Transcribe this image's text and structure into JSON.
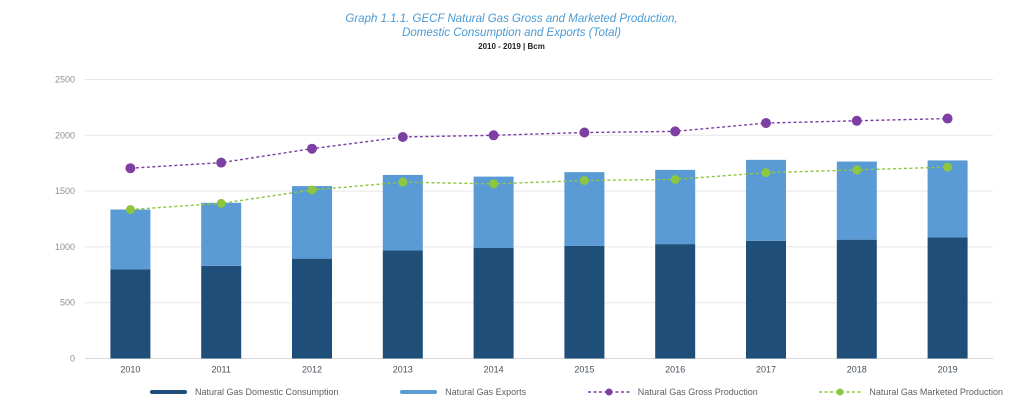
{
  "title": {
    "line1": "Graph 1.1.1. GECF Natural Gas Gross and Marketed Production,",
    "line2": "Domestic Consumption and Exports (Total)",
    "line3": "2010 - 2019 | Bcm"
  },
  "colors": {
    "title_blue": "#4a9ad2",
    "domestic_navy": "#1f4e79",
    "exports_blue": "#5b9bd5",
    "gross_purple": "#7d3fa4",
    "marketed_green": "#8dc63f",
    "gridline": "#e7e7e7",
    "axis_line": "#d8d8d8"
  },
  "chart_data": {
    "type": "bar",
    "subtype": "stacked-bars-with-dashed-lines",
    "title": "Graph 1.1.1. GECF Natural Gas Gross and Marketed Production, Domestic Consumption and Exports (Total)",
    "subtitle": "2010 - 2019 | Bcm",
    "xlabel": "",
    "ylabel": "Bcm",
    "ylim": [
      0,
      2500
    ],
    "yticks": [
      0,
      500,
      1000,
      1500,
      2000,
      2500
    ],
    "grid": true,
    "legend_position": "bottom",
    "categories": [
      "2010",
      "2011",
      "2012",
      "2013",
      "2014",
      "2015",
      "2016",
      "2017",
      "2018",
      "2019"
    ],
    "series": [
      {
        "name": "Natural Gas Domestic Consumption",
        "kind": "bar",
        "color": "#1f4e79",
        "values": [
          800,
          830,
          895,
          970,
          990,
          1010,
          1025,
          1055,
          1065,
          1085
        ]
      },
      {
        "name": "Natural Gas Exports",
        "kind": "bar",
        "color": "#5b9bd5",
        "values": [
          535,
          565,
          650,
          675,
          640,
          660,
          665,
          725,
          700,
          690
        ]
      },
      {
        "name": "Natural Gas Gross Production",
        "kind": "line",
        "color": "#7d3fa4",
        "values": [
          1705,
          1755,
          1880,
          1985,
          2000,
          2025,
          2035,
          2110,
          2130,
          2150
        ]
      },
      {
        "name": "Natural Gas Marketed Production",
        "kind": "line",
        "color": "#8dc63f",
        "values": [
          1335,
          1390,
          1510,
          1580,
          1565,
          1595,
          1605,
          1665,
          1690,
          1715
        ]
      }
    ]
  }
}
